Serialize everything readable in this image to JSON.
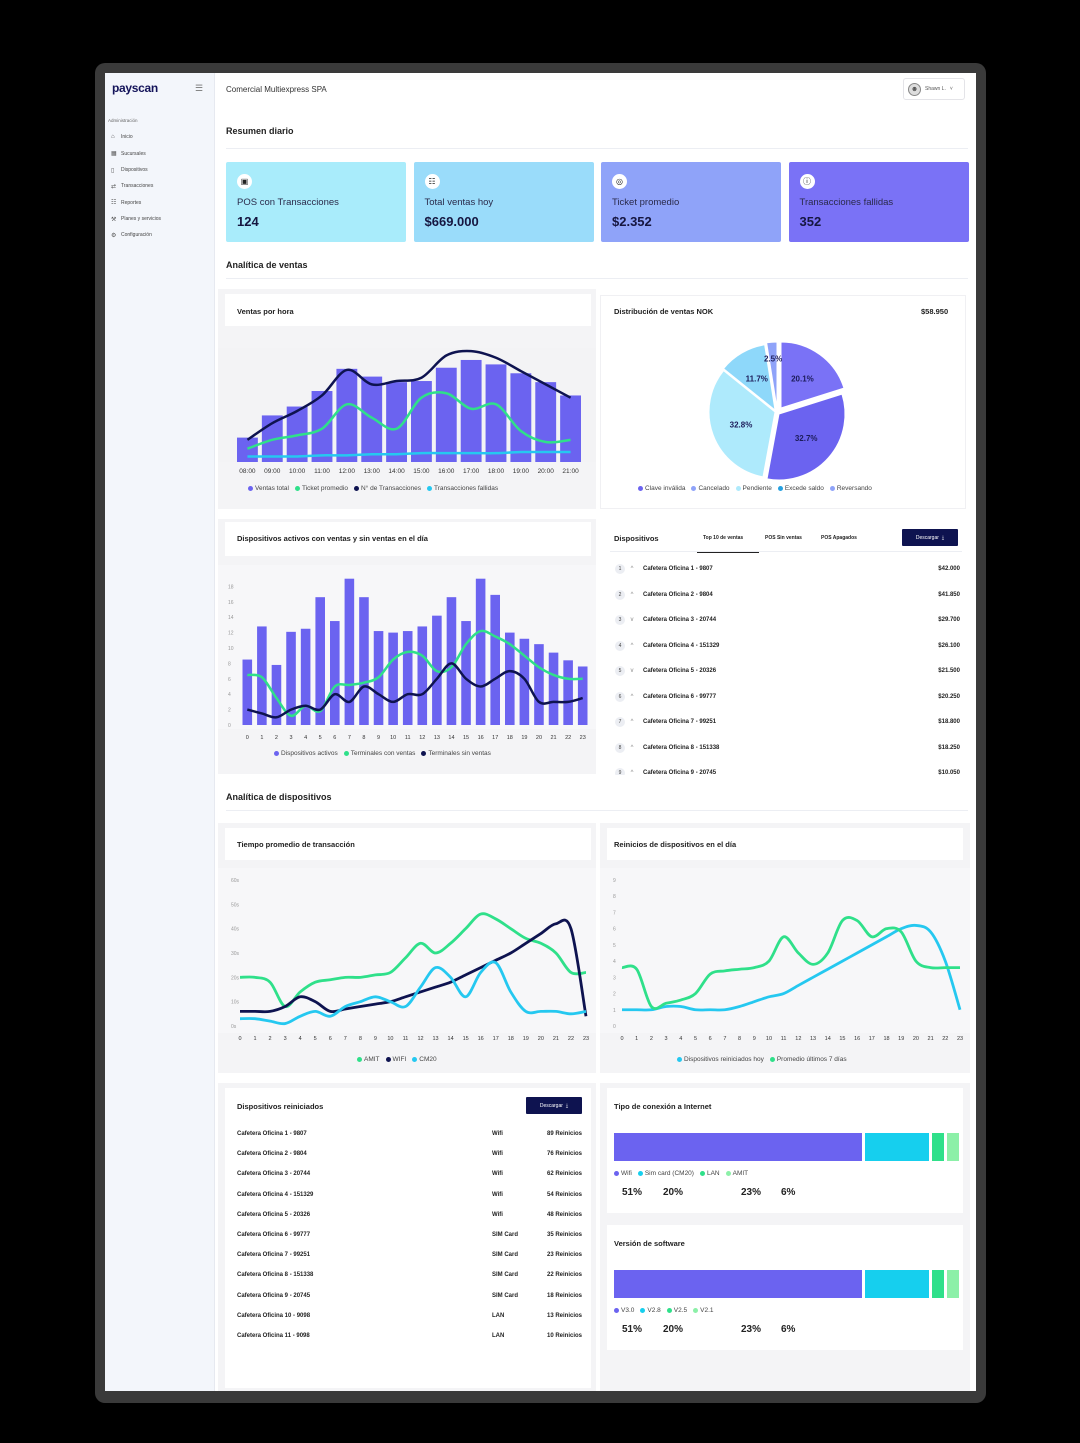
{
  "sidebar": {
    "logo": "payscan",
    "section": "Administración",
    "items": [
      {
        "label": "Inicio",
        "icon": "home-icon"
      },
      {
        "label": "Sucursales",
        "icon": "store-icon"
      },
      {
        "label": "Dispositivos",
        "icon": "device-icon"
      },
      {
        "label": "Transacciones",
        "icon": "transactions-icon"
      },
      {
        "label": "Reportes",
        "icon": "reports-icon"
      },
      {
        "label": "Planes y servicios",
        "icon": "plans-icon"
      },
      {
        "label": "Configuración",
        "icon": "settings-icon"
      }
    ]
  },
  "header": {
    "company": "Comercial Multiexpress SPA",
    "user": "Shawn L."
  },
  "summary": {
    "title": "Resumen diario",
    "cards": [
      {
        "label": "POS con Transacciones",
        "value": "124",
        "color": "#a9ecfb"
      },
      {
        "label": "Total ventas hoy",
        "value": "$669.000",
        "color": "#9adcfa"
      },
      {
        "label": "Ticket promedio",
        "value": "$2.352",
        "color": "#8fa3f9"
      },
      {
        "label": "Transacciones fallidas",
        "value": "352",
        "color": "#7a72f6"
      }
    ]
  },
  "sales": {
    "title": "Analítica de ventas",
    "hourly": {
      "title": "Ventas por hora",
      "legend": [
        "Ventas total",
        "Ticket promedio",
        "N° de Transacciones",
        "Transacciones fallidas"
      ]
    },
    "pie": {
      "title": "Distribución de ventas NOK",
      "total": "$58.950",
      "legend": [
        "Clave inválida",
        "Cancelado",
        "Pendiente",
        "Excede saldo",
        "Reversando"
      ]
    },
    "devices_chart": {
      "title": "Dispositivos activos con ventas y sin ventas en el día",
      "legend": [
        "Dispositivos activos",
        "Terminales con ventas",
        "Terminales sin ventas"
      ]
    },
    "devices_list": {
      "title": "Dispositivos",
      "tabs": [
        "Top 10 de ventas",
        "POS Sin ventas",
        "POS Apagados"
      ],
      "download": "Descargar",
      "rows": [
        {
          "rank": "1",
          "trend": "^",
          "name": "Cafetera Oficina 1 - 9807",
          "value": "$42.000"
        },
        {
          "rank": "2",
          "trend": "^",
          "name": "Cafetera Oficina 2 - 9804",
          "value": "$41.850"
        },
        {
          "rank": "3",
          "trend": "v",
          "name": "Cafetera Oficina 3 - 20744",
          "value": "$29.700"
        },
        {
          "rank": "4",
          "trend": "^",
          "name": "Cafetera Oficina 4 - 151329",
          "value": "$26.100"
        },
        {
          "rank": "5",
          "trend": "v",
          "name": "Cafetera Oficina 5 - 20326",
          "value": "$21.500"
        },
        {
          "rank": "6",
          "trend": "^",
          "name": "Cafetera Oficina 6 - 99777",
          "value": "$20.250"
        },
        {
          "rank": "7",
          "trend": "^",
          "name": "Cafetera Oficina 7 - 99251",
          "value": "$18.800"
        },
        {
          "rank": "8",
          "trend": "^",
          "name": "Cafetera Oficina 8 - 151338",
          "value": "$18.250"
        },
        {
          "rank": "9",
          "trend": "^",
          "name": "Cafetera Oficina 9 - 20745",
          "value": "$10.050"
        }
      ]
    }
  },
  "devices": {
    "title": "Analítica de dispositivos",
    "tx_time": {
      "title": "Tiempo promedio de transacción",
      "legend": [
        "AMIT",
        "WIFI",
        "CM20"
      ]
    },
    "restarts": {
      "title": "Reinicios de dispositivos en el día",
      "legend": [
        "Dispositivos reiniciados hoy",
        "Promedio últimos 7 días"
      ]
    },
    "restarted_list": {
      "title": "Dispositivos reiniciados",
      "download": "Descargar",
      "rows": [
        {
          "name": "Cafetera Oficina 1 - 9807",
          "type": "Wifi",
          "count": "89 Reinicios"
        },
        {
          "name": "Cafetera Oficina 2 - 9804",
          "type": "Wifi",
          "count": "76 Reinicios"
        },
        {
          "name": "Cafetera Oficina 3 - 20744",
          "type": "Wifi",
          "count": "62 Reinicios"
        },
        {
          "name": "Cafetera Oficina 4 - 151329",
          "type": "Wifi",
          "count": "54 Reinicios"
        },
        {
          "name": "Cafetera Oficina 5 - 20326",
          "type": "Wifi",
          "count": "48 Reinicios"
        },
        {
          "name": "Cafetera Oficina 6 - 99777",
          "type": "SIM Card",
          "count": "35 Reinicios"
        },
        {
          "name": "Cafetera Oficina 7 - 99251",
          "type": "SIM Card",
          "count": "23 Reinicios"
        },
        {
          "name": "Cafetera Oficina 8 - 151338",
          "type": "SIM Card",
          "count": "22 Reinicios"
        },
        {
          "name": "Cafetera Oficina 9 - 20745",
          "type": "SIM Card",
          "count": "18 Reinicios"
        },
        {
          "name": "Cafetera Oficina 10 - 9098",
          "type": "LAN",
          "count": "13 Reinicios"
        },
        {
          "name": "Cafetera Oficina 11 - 9098",
          "type": "LAN",
          "count": "10 Reinicios"
        }
      ]
    },
    "connection": {
      "title": "Tipo de conexión a Internet",
      "legend": [
        "Wifi",
        "Sim card (CM20)",
        "LAN",
        "AMIT"
      ],
      "values": [
        "51%",
        "20%",
        "23%",
        "6%"
      ]
    },
    "software": {
      "title": "Versión de software",
      "legend": [
        "V3.0",
        "V2.8",
        "V2.5",
        "V2.1"
      ],
      "values": [
        "51%",
        "20%",
        "23%",
        "6%"
      ]
    }
  },
  "chart_data": [
    {
      "type": "bar",
      "title": "Ventas por hora",
      "categories": [
        "08:00",
        "09:00",
        "10:00",
        "11:00",
        "12:00",
        "13:00",
        "14:00",
        "15:00",
        "16:00",
        "17:00",
        "18:00",
        "19:00",
        "20:00",
        "21:00"
      ],
      "series": [
        {
          "name": "Ventas total",
          "type": "bar",
          "values": [
            22,
            42,
            50,
            64,
            84,
            77,
            72,
            73,
            85,
            92,
            88,
            80,
            72,
            60
          ],
          "color": "#6b63f0"
        },
        {
          "name": "Ticket promedio",
          "type": "line",
          "values": [
            12,
            20,
            24,
            30,
            52,
            40,
            30,
            58,
            62,
            48,
            52,
            28,
            18,
            20
          ],
          "color": "#2fe08a"
        },
        {
          "name": "N° de Transacciones",
          "type": "line",
          "values": [
            20,
            35,
            46,
            60,
            83,
            70,
            73,
            76,
            96,
            100,
            94,
            82,
            70,
            58
          ],
          "color": "#0e1350"
        },
        {
          "name": "Transacciones fallidas",
          "type": "line",
          "values": [
            5,
            5,
            5,
            6,
            6,
            7,
            7,
            8,
            8,
            8,
            8,
            9,
            9,
            9
          ],
          "color": "#25c8f0"
        }
      ],
      "ylim": [
        0,
        110
      ]
    },
    {
      "type": "pie",
      "title": "Distribución de ventas NOK",
      "labels": [
        "Clave inválida",
        "Cancelado",
        "Pendiente",
        "Excede saldo",
        "Reversando"
      ],
      "values": [
        20.1,
        32.7,
        32.8,
        11.7,
        2.5
      ],
      "colors": [
        "#7a72f6",
        "#6b63f0",
        "#aeeafc",
        "#8ed8fa",
        "#8fa3f9"
      ]
    },
    {
      "type": "bar",
      "title": "Dispositivos activos con ventas y sin ventas en el día",
      "categories": [
        "0",
        "1",
        "2",
        "3",
        "4",
        "5",
        "6",
        "7",
        "8",
        "9",
        "10",
        "11",
        "12",
        "13",
        "14",
        "15",
        "16",
        "17",
        "18",
        "19",
        "20",
        "21",
        "22",
        "23"
      ],
      "series": [
        {
          "name": "Dispositivos activos",
          "type": "bar",
          "values": [
            8.5,
            12.8,
            7.8,
            12.1,
            12.5,
            16.6,
            13.5,
            19,
            16.6,
            12.2,
            12,
            12.2,
            12.8,
            14.2,
            16.6,
            13.5,
            19,
            16.9,
            12,
            11.2,
            10.5,
            9.4,
            8.4,
            7.6
          ],
          "color": "#6b63f0"
        },
        {
          "name": "Terminales con ventas",
          "type": "line",
          "values": [
            6.5,
            6.2,
            3.5,
            1.2,
            2.5,
            1.8,
            5,
            5.2,
            5.5,
            6.2,
            8.5,
            9.5,
            9,
            7,
            7.5,
            10.5,
            12.2,
            11.5,
            10.5,
            9,
            7.5,
            6.5,
            6,
            6
          ],
          "color": "#2fe08a"
        },
        {
          "name": "Terminales sin ventas",
          "type": "line",
          "values": [
            2,
            1.5,
            1,
            2,
            2.5,
            2,
            4,
            3,
            5,
            4,
            3,
            4,
            4,
            6,
            8,
            6,
            5,
            6,
            7,
            6,
            3,
            3,
            3,
            3.5
          ],
          "color": "#0e1350"
        }
      ],
      "yticks": [
        "0",
        "2",
        "4",
        "6",
        "8",
        "10",
        "12",
        "14",
        "16",
        "18"
      ],
      "ylim": [
        0,
        20
      ]
    },
    {
      "type": "line",
      "title": "Tiempo promedio de transacción",
      "x": [
        "0",
        "1",
        "2",
        "3",
        "4",
        "5",
        "6",
        "7",
        "8",
        "9",
        "10",
        "11",
        "12",
        "13",
        "14",
        "15",
        "16",
        "17",
        "18",
        "19",
        "20",
        "21",
        "22",
        "23"
      ],
      "series": [
        {
          "name": "AMIT",
          "values": [
            20,
            20,
            18,
            8,
            14,
            18,
            19,
            20,
            20,
            21,
            22,
            28,
            34,
            30,
            34,
            40,
            46,
            44,
            40,
            36,
            34,
            30,
            22,
            22
          ],
          "color": "#2fe08a"
        },
        {
          "name": "WIFI",
          "values": [
            6,
            6,
            6,
            8,
            12,
            10,
            6,
            7,
            8,
            9,
            10,
            12,
            14,
            16,
            18,
            21,
            24,
            27,
            30,
            34,
            38,
            42,
            40,
            4
          ],
          "color": "#0e1350"
        },
        {
          "name": "CM20",
          "values": [
            3,
            3,
            2,
            1,
            4,
            6,
            4,
            8,
            10,
            12,
            10,
            8,
            16,
            24,
            20,
            12,
            22,
            26,
            14,
            6,
            6,
            6,
            5,
            6
          ],
          "color": "#25c8f0"
        }
      ],
      "yticks": [
        "0s",
        "10s",
        "20s",
        "30s",
        "40s",
        "50s",
        "60s"
      ],
      "ylim": [
        0,
        60
      ]
    },
    {
      "type": "line",
      "title": "Reinicios de dispositivos en el día",
      "x": [
        "0",
        "1",
        "2",
        "3",
        "4",
        "5",
        "6",
        "7",
        "8",
        "9",
        "10",
        "11",
        "12",
        "13",
        "14",
        "15",
        "16",
        "17",
        "18",
        "19",
        "20",
        "21",
        "22",
        "23"
      ],
      "series": [
        {
          "name": "Dispositivos reiniciados hoy",
          "values": [
            1,
            1,
            1,
            1.2,
            1.2,
            1,
            1,
            1,
            1.2,
            1.5,
            1.8,
            2,
            2.5,
            3,
            3.5,
            4,
            4.5,
            5,
            5.5,
            6,
            6.2,
            5.8,
            4,
            1
          ],
          "color": "#25c8f0"
        },
        {
          "name": "Promedio últimos 7 días",
          "values": [
            3.6,
            3.5,
            1.2,
            1.4,
            1.6,
            2,
            3.2,
            3.4,
            3.5,
            3.6,
            4,
            5.5,
            4.5,
            3.8,
            4.5,
            6.5,
            6.5,
            5.5,
            6,
            5.8,
            4,
            3.6,
            3.6,
            3.6
          ],
          "color": "#2fe08a"
        }
      ],
      "yticks": [
        "0",
        "1",
        "2",
        "3",
        "4",
        "5",
        "6",
        "7",
        "8",
        "9"
      ],
      "ylim": [
        0,
        9
      ]
    }
  ]
}
